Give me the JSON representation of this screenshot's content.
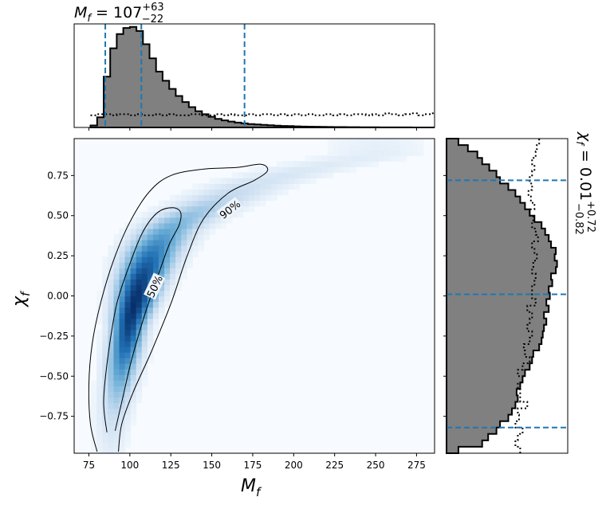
{
  "chart_data": {
    "type": "corner-plot",
    "main": {
      "type": "heatmap",
      "xlabel_base": "M",
      "xlabel_sub": "f",
      "ylabel_base": "χ",
      "ylabel_sub": "f",
      "xlim": [
        66,
        286
      ],
      "ylim": [
        -0.98,
        0.98
      ],
      "xticks": [
        75,
        100,
        125,
        150,
        175,
        200,
        225,
        250,
        275
      ],
      "yticks": [
        0.75,
        0.5,
        0.25,
        0.0,
        -0.25,
        -0.5,
        -0.75
      ],
      "ytick_labels": [
        "0.75",
        "0.50",
        "0.25",
        "0.00",
        "−0.25",
        "−0.50",
        "−0.75"
      ],
      "colormap": [
        "#f7fbff",
        "#c6dbef",
        "#6baed6",
        "#2171b5",
        "#08306b"
      ],
      "contours": [
        {
          "label": "90%",
          "label_at": [
            161,
            0.54
          ],
          "label_angle": -38,
          "points": [
            [
              80,
              -0.97
            ],
            [
              76,
              -0.8
            ],
            [
              75,
              -0.55
            ],
            [
              77,
              -0.3
            ],
            [
              82,
              -0.05
            ],
            [
              90,
              0.22
            ],
            [
              100,
              0.46
            ],
            [
              112,
              0.65
            ],
            [
              125,
              0.75
            ],
            [
              145,
              0.79
            ],
            [
              165,
              0.8
            ],
            [
              180,
              0.82
            ],
            [
              184,
              0.78
            ],
            [
              176,
              0.72
            ],
            [
              160,
              0.64
            ],
            [
              145,
              0.48
            ],
            [
              135,
              0.25
            ],
            [
              125,
              -0.05
            ],
            [
              113,
              -0.35
            ],
            [
              102,
              -0.6
            ],
            [
              95,
              -0.8
            ],
            [
              93,
              -0.97
            ]
          ]
        },
        {
          "label": "50%",
          "label_at": [
            115,
            0.06
          ],
          "label_angle": -65,
          "points": [
            [
              86,
              -0.85
            ],
            [
              84,
              -0.65
            ],
            [
              87,
              -0.35
            ],
            [
              92,
              -0.05
            ],
            [
              100,
              0.2
            ],
            [
              108,
              0.4
            ],
            [
              117,
              0.52
            ],
            [
              126,
              0.55
            ],
            [
              131,
              0.52
            ],
            [
              130,
              0.44
            ],
            [
              124,
              0.32
            ],
            [
              117,
              0.12
            ],
            [
              109,
              -0.12
            ],
            [
              101,
              -0.4
            ],
            [
              96,
              -0.62
            ],
            [
              91,
              -0.84
            ]
          ]
        }
      ]
    },
    "top": {
      "title_base": "M",
      "title_sub": "f",
      "title_value": "107",
      "title_plus": "+63",
      "title_minus": "−22",
      "bin_edges": [
        76,
        80,
        84,
        88,
        92,
        96,
        100,
        104,
        108,
        112,
        116,
        120,
        124,
        128,
        132,
        136,
        140,
        144,
        148,
        152,
        156,
        160,
        164,
        168,
        172,
        176,
        180,
        184,
        188,
        192,
        196,
        200,
        204,
        208,
        212,
        216,
        220,
        224,
        228,
        232,
        236,
        240,
        244,
        248,
        252,
        256,
        260,
        264,
        268,
        272,
        276,
        280,
        284,
        286
      ],
      "counts": [
        0.02,
        0.1,
        0.5,
        0.78,
        0.92,
        0.98,
        0.99,
        0.95,
        0.82,
        0.68,
        0.55,
        0.46,
        0.38,
        0.31,
        0.25,
        0.2,
        0.16,
        0.13,
        0.105,
        0.085,
        0.07,
        0.058,
        0.048,
        0.04,
        0.034,
        0.029,
        0.025,
        0.021,
        0.018,
        0.015,
        0.013,
        0.011,
        0.009,
        0.008,
        0.007,
        0.006,
        0.005,
        0.004,
        0.004,
        0.003,
        0.003,
        0.002,
        0.002,
        0.002,
        0.001,
        0.001,
        0.001,
        0.001,
        0.001,
        0,
        0,
        0,
        0
      ],
      "prior": [
        0.12,
        0.13,
        0.13,
        0.12,
        0.13,
        0.13,
        0.12,
        0.13,
        0.12,
        0.12,
        0.13,
        0.12,
        0.13,
        0.12,
        0.12,
        0.13,
        0.13,
        0.12,
        0.12,
        0.13,
        0.12,
        0.13,
        0.12,
        0.12,
        0.13,
        0.12,
        0.13,
        0.13,
        0.12,
        0.13,
        0.12,
        0.13,
        0.12,
        0.13,
        0.12,
        0.12,
        0.13,
        0.12,
        0.13,
        0.12,
        0.13,
        0.13,
        0.12,
        0.13,
        0.12,
        0.14,
        0.13,
        0.12,
        0.13,
        0.14,
        0.12,
        0.13,
        0.14
      ],
      "ylim": [
        0,
        1.02
      ],
      "quantiles": [
        85,
        107,
        170
      ]
    },
    "right": {
      "title_base": "χ",
      "title_sub": "f",
      "title_value": "0.01",
      "title_plus": "+0.72",
      "title_minus": "−0.82",
      "bin_edges": [
        -0.98,
        -0.94,
        -0.9,
        -0.86,
        -0.82,
        -0.78,
        -0.74,
        -0.7,
        -0.66,
        -0.62,
        -0.58,
        -0.54,
        -0.5,
        -0.46,
        -0.42,
        -0.38,
        -0.34,
        -0.3,
        -0.26,
        -0.22,
        -0.18,
        -0.14,
        -0.1,
        -0.06,
        -0.02,
        0.02,
        0.06,
        0.1,
        0.14,
        0.18,
        0.22,
        0.26,
        0.3,
        0.34,
        0.38,
        0.42,
        0.46,
        0.5,
        0.54,
        0.58,
        0.62,
        0.66,
        0.7,
        0.74,
        0.78,
        0.82,
        0.86,
        0.9,
        0.94,
        0.98
      ],
      "counts": [
        0.1,
        0.3,
        0.35,
        0.42,
        0.45,
        0.52,
        0.55,
        0.58,
        0.6,
        0.59,
        0.62,
        0.64,
        0.66,
        0.7,
        0.72,
        0.73,
        0.78,
        0.8,
        0.81,
        0.82,
        0.84,
        0.82,
        0.86,
        0.84,
        0.87,
        0.86,
        0.89,
        0.88,
        0.92,
        0.93,
        0.91,
        0.92,
        0.88,
        0.86,
        0.83,
        0.8,
        0.74,
        0.7,
        0.66,
        0.62,
        0.58,
        0.52,
        0.45,
        0.42,
        0.36,
        0.3,
        0.26,
        0.18,
        0.1
      ],
      "prior": [
        0.62,
        0.58,
        0.6,
        0.64,
        0.58,
        0.61,
        0.6,
        0.68,
        0.62,
        0.62,
        0.6,
        0.64,
        0.6,
        0.64,
        0.7,
        0.66,
        0.65,
        0.7,
        0.72,
        0.68,
        0.7,
        0.72,
        0.68,
        0.75,
        0.72,
        0.72,
        0.74,
        0.75,
        0.72,
        0.73,
        0.76,
        0.74,
        0.72,
        0.77,
        0.75,
        0.72,
        0.73,
        0.7,
        0.74,
        0.71,
        0.69,
        0.72,
        0.7,
        0.72,
        0.74,
        0.72,
        0.75,
        0.76,
        0.78
      ],
      "xlim": [
        0,
        1.02
      ],
      "quantiles": [
        -0.82,
        0.01,
        0.72
      ]
    },
    "colors": {
      "hist_fill": "#808080",
      "hist_edge": "#000000",
      "quantile_line": "#1f77b4"
    }
  }
}
